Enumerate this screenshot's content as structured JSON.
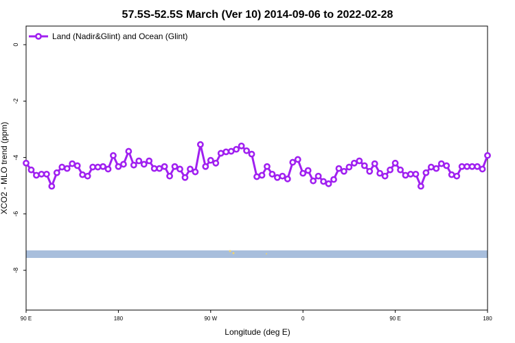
{
  "chart_data": {
    "type": "line",
    "title": "57.5S-52.5S March (Ver 10)   2014-09-06 to 2022-02-28",
    "xlabel": "Longitude (deg E)",
    "ylabel": "XCO2 - MLO trend (ppm)",
    "x": [
      90,
      95,
      100,
      105,
      110,
      115,
      120,
      125,
      130,
      135,
      140,
      145,
      150,
      155,
      160,
      165,
      170,
      175,
      180,
      185,
      190,
      195,
      200,
      205,
      210,
      215,
      220,
      225,
      230,
      235,
      240,
      245,
      250,
      255,
      260,
      265,
      270,
      275,
      280,
      285,
      290,
      295,
      300,
      305,
      310,
      315,
      320,
      325,
      330,
      335,
      340,
      345,
      350,
      355,
      360,
      365,
      370,
      375,
      380,
      385,
      390,
      395,
      400,
      405,
      410,
      415,
      420,
      425,
      430,
      435,
      440,
      445,
      450,
      455,
      460,
      465,
      470,
      475,
      480,
      485,
      490,
      495,
      500,
      505,
      510,
      515,
      520,
      525,
      530,
      535,
      540
    ],
    "series": [
      {
        "name": "Land (Nadir&Glint) and Ocean (Glint)",
        "color": "#a020f0",
        "values": [
          -4.2,
          -4.44,
          -4.63,
          -4.59,
          -4.59,
          -5.02,
          -4.54,
          -4.34,
          -4.39,
          -4.22,
          -4.29,
          -4.61,
          -4.66,
          -4.34,
          -4.34,
          -4.32,
          -4.41,
          -3.93,
          -4.32,
          -4.24,
          -3.78,
          -4.27,
          -4.12,
          -4.24,
          -4.12,
          -4.39,
          -4.39,
          -4.32,
          -4.66,
          -4.32,
          -4.41,
          -4.71,
          -4.41,
          -4.51,
          -3.54,
          -4.32,
          -4.1,
          -4.2,
          -3.85,
          -3.8,
          -3.78,
          -3.71,
          -3.59,
          -3.76,
          -3.88,
          -4.68,
          -4.63,
          -4.32,
          -4.59,
          -4.71,
          -4.66,
          -4.76,
          -4.17,
          -4.07,
          -4.56,
          -4.46,
          -4.83,
          -4.66,
          -4.85,
          -4.93,
          -4.78,
          -4.39,
          -4.49,
          -4.34,
          -4.2,
          -4.12,
          -4.29,
          -4.49,
          -4.22,
          -4.56,
          -4.66,
          -4.44,
          -4.2,
          -4.44,
          -4.63,
          -4.59,
          -4.59,
          -5.02,
          -4.54,
          -4.34,
          -4.39,
          -4.22,
          -4.29,
          -4.61,
          -4.66,
          -4.32,
          -4.32,
          -4.32,
          -4.32,
          -4.41,
          -3.93
        ]
      }
    ],
    "xlim": [
      90,
      540
    ],
    "xticks": [
      {
        "value": 90,
        "label": "90 E"
      },
      180,
      {
        "value": 270,
        "label": "90 W"
      },
      {
        "value": 360,
        "label": "0"
      },
      {
        "value": 450,
        "label": "90 E"
      },
      {
        "value": 540,
        "label": "180"
      }
    ],
    "ylim": [
      -9.41,
      0.66
    ],
    "yticks": [
      0,
      -2,
      -4,
      -6,
      -8
    ],
    "grid": false,
    "legend": "top-left"
  }
}
